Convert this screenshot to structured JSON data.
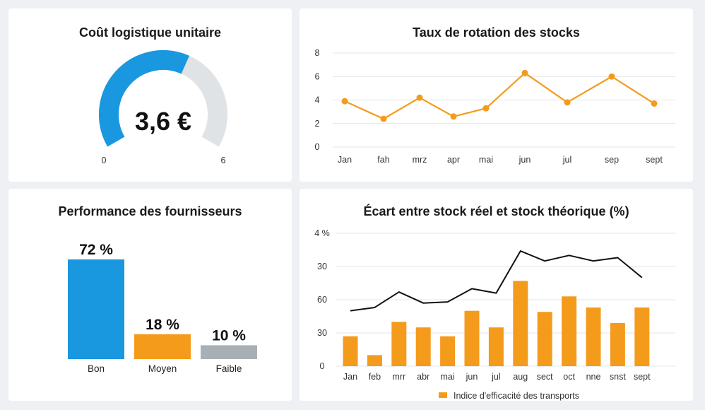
{
  "colors": {
    "blue": "#1998e0",
    "orange": "#f59b1c",
    "gray": "#a8b0b6",
    "track": "#e0e3e6",
    "line": "#111111"
  },
  "chart_data": [
    {
      "type": "gauge",
      "title": "Coût logistique unitaire",
      "value": 3.6,
      "value_label": "3,6 €",
      "min": 0,
      "max": 6,
      "min_label": "0",
      "max_label": "6"
    },
    {
      "type": "line",
      "title": "Taux de rotation des stocks",
      "categories": [
        "Jan",
        "fah",
        "mrz",
        "apr",
        "mai",
        "jun",
        "jul",
        "sep",
        "sept"
      ],
      "values": [
        3.9,
        2.4,
        4.2,
        2.6,
        3.3,
        6.3,
        3.8,
        6.0,
        3.7
      ],
      "ylim": [
        0,
        8
      ],
      "yticks": [
        "0",
        "2",
        "4",
        "6",
        "8"
      ],
      "grid": true
    },
    {
      "type": "bar",
      "title": "Performance des fournisseurs",
      "categories": [
        "Bon",
        "Moyen",
        "Faible"
      ],
      "values": [
        72,
        18,
        10
      ],
      "labels": [
        "72 %",
        "18 %",
        "10 %"
      ]
    },
    {
      "type": "bar+line",
      "title": "Écart entre stock réel et stock théorique (%)",
      "categories": [
        "Jan",
        "feb",
        "mrr",
        "abr",
        "mai",
        "jun",
        "jul",
        "aug",
        "sect",
        "oct",
        "nne",
        "snst",
        "sept"
      ],
      "bar_values": [
        27,
        10,
        40,
        35,
        27,
        50,
        35,
        77,
        49,
        63,
        53,
        39,
        53
      ],
      "line_values": [
        50,
        53,
        67,
        57,
        58,
        70,
        66,
        104,
        95,
        100,
        95,
        98,
        80
      ],
      "yticks": [
        "0",
        "30",
        "60",
        "30",
        "4 %"
      ],
      "ylim": [
        0,
        120
      ],
      "legend": "Indice d'efficacité des transports",
      "legend_position": "bottom",
      "grid": true
    }
  ]
}
